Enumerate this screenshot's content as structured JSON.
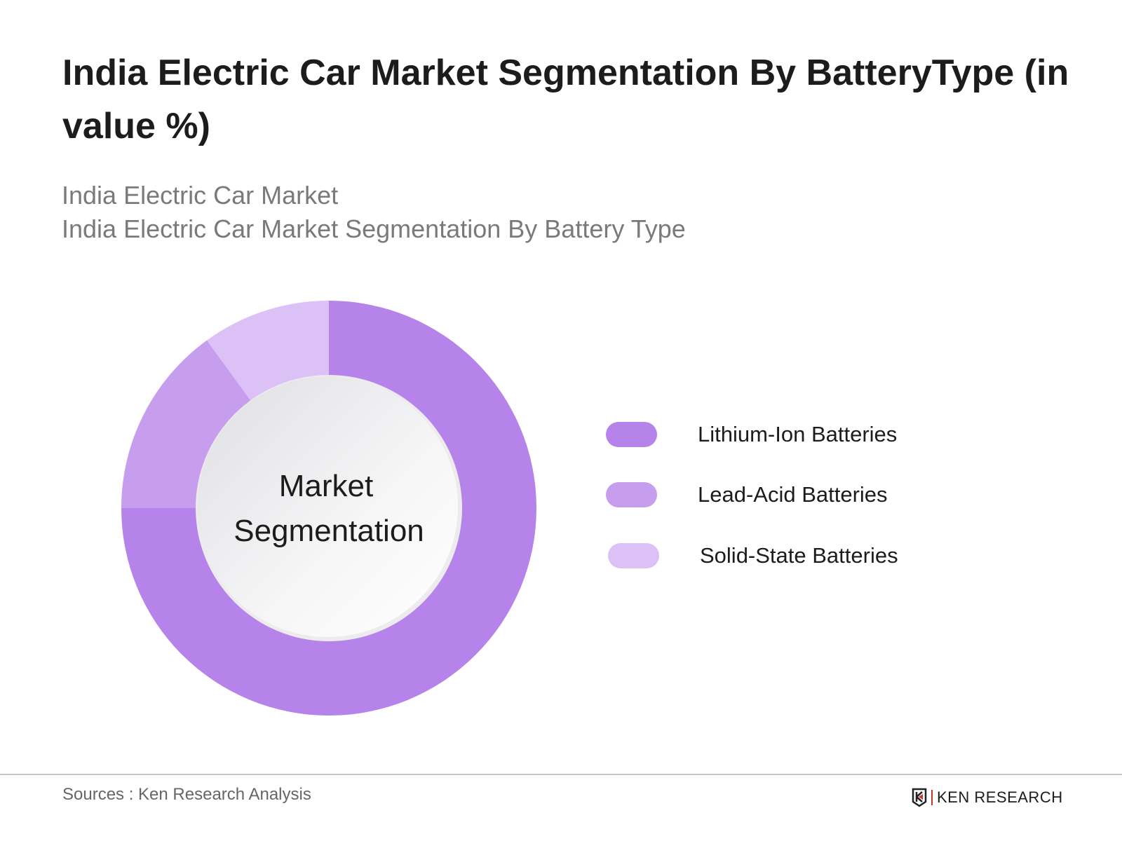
{
  "title": "India Electric Car Market Segmentation By BatteryType (in value %)",
  "subtitle_line1": "India Electric Car Market",
  "subtitle_line2": "India Electric Car Market Segmentation By Battery Type",
  "chart_data": {
    "type": "pie",
    "donut": true,
    "center_label_line1": "Market",
    "center_label_line2": "Segmentation",
    "categories": [
      "Lithium-Ion Batteries",
      "Lead-Acid Batteries",
      "Solid-State Batteries"
    ],
    "values": [
      75,
      15,
      10
    ],
    "colors": [
      "#b583e9",
      "#c79eee",
      "#dcc1f6"
    ],
    "legend_position": "right"
  },
  "footer": {
    "source": "Sources : Ken Research Analysis",
    "logo_text": "KEN RESEARCH"
  }
}
